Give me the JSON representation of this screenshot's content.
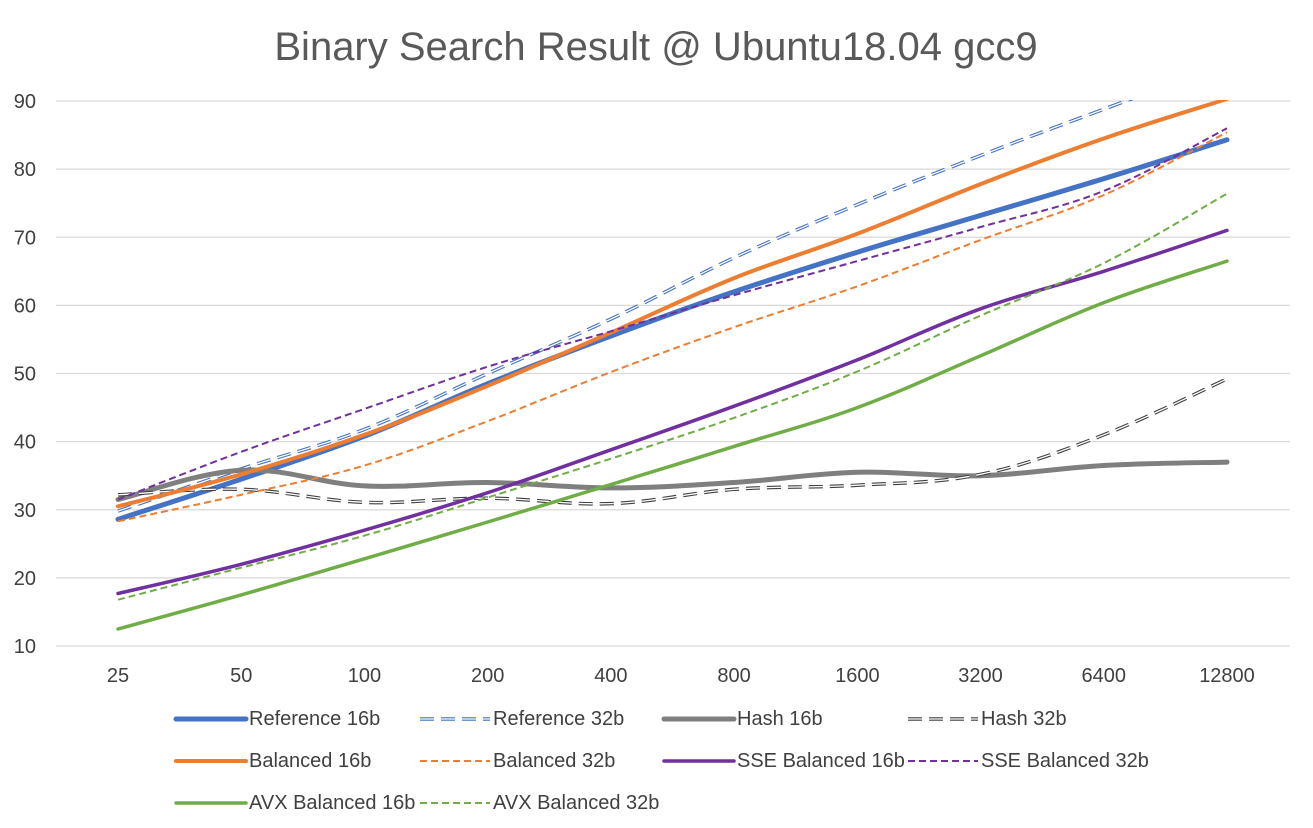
{
  "chart_data": {
    "type": "line",
    "title": "Binary Search Result @ Ubuntu18.04 gcc9",
    "xlabel": "",
    "ylabel": "",
    "ylim": [
      10,
      90
    ],
    "yticks": [
      10,
      20,
      30,
      40,
      50,
      60,
      70,
      80,
      90
    ],
    "grid": true,
    "legend_position": "bottom",
    "categories": [
      "25",
      "50",
      "100",
      "200",
      "400",
      "800",
      "1600",
      "3200",
      "6400",
      "12800"
    ],
    "series": [
      {
        "name": "Reference 16b",
        "color": "#4472C4",
        "dashed": false,
        "width": 5,
        "values": [
          28.6,
          34.5,
          40.8,
          48.5,
          55.5,
          62,
          67.8,
          73.2,
          78.6,
          84.3
        ]
      },
      {
        "name": "Reference 32b",
        "color": "#4472C4",
        "dashed": true,
        "width": 3.5,
        "values": [
          29.8,
          36,
          41.8,
          50,
          58,
          67,
          74.8,
          82,
          88.8,
          95.5
        ]
      },
      {
        "name": "Hash 16b",
        "color": "#7F7F7F",
        "dashed": false,
        "width": 5,
        "values": [
          31.5,
          35.8,
          33.5,
          34,
          33.2,
          34,
          35.5,
          35,
          36.5,
          37
        ]
      },
      {
        "name": "Hash 32b",
        "color": "#404040",
        "dashed": true,
        "width": 3.5,
        "values": [
          32.2,
          33,
          31.1,
          31.7,
          30.9,
          33,
          33.6,
          35.2,
          41,
          49.2
        ]
      },
      {
        "name": "Balanced 16b",
        "color": "#ED7D31",
        "dashed": false,
        "width": 4,
        "values": [
          30.5,
          35.2,
          41,
          48.2,
          56,
          64,
          70.5,
          77.8,
          84.5,
          90.3
        ]
      },
      {
        "name": "Balanced 32b",
        "color": "#ED7D31",
        "dashed": true,
        "width": 2,
        "values": [
          28.3,
          32.2,
          36.5,
          43,
          50.2,
          56.8,
          62.8,
          69.6,
          76.2,
          85.4
        ]
      },
      {
        "name": "SSE Balanced 16b",
        "color": "#7030A0",
        "dashed": false,
        "width": 3.5,
        "values": [
          17.7,
          22,
          27,
          32.5,
          38.8,
          45.2,
          52,
          59.5,
          65,
          71
        ]
      },
      {
        "name": "SSE Balanced 32b",
        "color": "#7030A0",
        "dashed": true,
        "width": 2,
        "values": [
          31.5,
          38.5,
          44.8,
          51,
          56.2,
          61.5,
          66.5,
          71.5,
          76.8,
          86
        ]
      },
      {
        "name": "AVX Balanced 16b",
        "color": "#70AD47",
        "dashed": false,
        "width": 3.5,
        "values": [
          12.5,
          17.5,
          22.8,
          28.2,
          33.7,
          39.3,
          45,
          52.6,
          60.4,
          66.5
        ]
      },
      {
        "name": "AVX Balanced 32b",
        "color": "#70AD47",
        "dashed": true,
        "width": 2,
        "values": [
          16.8,
          21.5,
          26.2,
          31.8,
          37.5,
          43.5,
          50.3,
          58.5,
          66.2,
          76.4
        ]
      }
    ]
  }
}
